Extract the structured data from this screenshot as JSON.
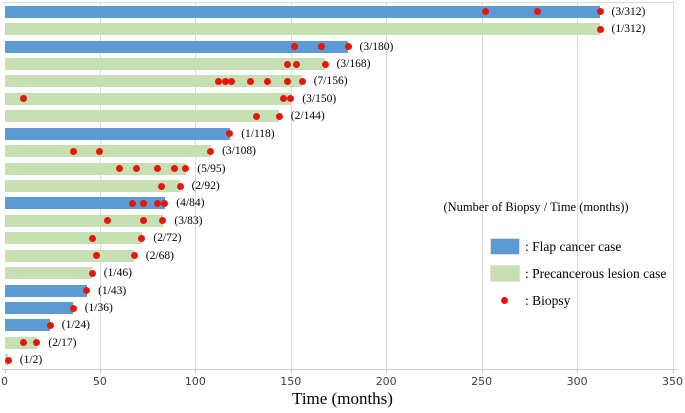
{
  "chart_data": {
    "type": "bar",
    "orientation": "horizontal",
    "title": "",
    "xlabel": "Time (months)",
    "ylabel": "",
    "xlim": [
      0,
      350
    ],
    "xticks": [
      0,
      50,
      100,
      150,
      200,
      250,
      300,
      350
    ],
    "grid": true,
    "label_format": "(Number of Biopsy / Time (months))",
    "bars": [
      {
        "label": "(3/312)",
        "case": "flap",
        "time_months": 312,
        "num_biopsy": 3,
        "biopsy_months": [
          252,
          279,
          312
        ]
      },
      {
        "label": "(1/312)",
        "case": "precancerous",
        "time_months": 312,
        "num_biopsy": 1,
        "biopsy_months": [
          312
        ]
      },
      {
        "label": "(3/180)",
        "case": "flap",
        "time_months": 180,
        "num_biopsy": 3,
        "biopsy_months": [
          152,
          166,
          180
        ]
      },
      {
        "label": "(3/168)",
        "case": "precancerous",
        "time_months": 168,
        "num_biopsy": 3,
        "biopsy_months": [
          148,
          153,
          168
        ]
      },
      {
        "label": "(7/156)",
        "case": "precancerous",
        "time_months": 156,
        "num_biopsy": 7,
        "biopsy_months": [
          112,
          116,
          119,
          129,
          138,
          148,
          156
        ]
      },
      {
        "label": "(3/150)",
        "case": "precancerous",
        "time_months": 150,
        "num_biopsy": 3,
        "biopsy_months": [
          10,
          146,
          150
        ]
      },
      {
        "label": "(2/144)",
        "case": "precancerous",
        "time_months": 144,
        "num_biopsy": 2,
        "biopsy_months": [
          132,
          144
        ]
      },
      {
        "label": "(1/118)",
        "case": "flap",
        "time_months": 118,
        "num_biopsy": 1,
        "biopsy_months": [
          118
        ]
      },
      {
        "label": "(3/108)",
        "case": "precancerous",
        "time_months": 108,
        "num_biopsy": 3,
        "biopsy_months": [
          36,
          50,
          108
        ]
      },
      {
        "label": "(5/95)",
        "case": "precancerous",
        "time_months": 95,
        "num_biopsy": 5,
        "biopsy_months": [
          60,
          69,
          80,
          89,
          95
        ]
      },
      {
        "label": "(2/92)",
        "case": "precancerous",
        "time_months": 92,
        "num_biopsy": 2,
        "biopsy_months": [
          82,
          92
        ]
      },
      {
        "label": "(4/84)",
        "case": "flap",
        "time_months": 84,
        "num_biopsy": 4,
        "biopsy_months": [
          67,
          73,
          80,
          84
        ]
      },
      {
        "label": "(3/83)",
        "case": "precancerous",
        "time_months": 83,
        "num_biopsy": 3,
        "biopsy_months": [
          54,
          73,
          83
        ]
      },
      {
        "label": "(2/72)",
        "case": "precancerous",
        "time_months": 72,
        "num_biopsy": 2,
        "biopsy_months": [
          46,
          72
        ]
      },
      {
        "label": "(2/68)",
        "case": "precancerous",
        "time_months": 68,
        "num_biopsy": 2,
        "biopsy_months": [
          48,
          68
        ]
      },
      {
        "label": "(1/46)",
        "case": "precancerous",
        "time_months": 46,
        "num_biopsy": 1,
        "biopsy_months": [
          46
        ]
      },
      {
        "label": "(1/43)",
        "case": "flap",
        "time_months": 43,
        "num_biopsy": 1,
        "biopsy_months": [
          43
        ]
      },
      {
        "label": "(1/36)",
        "case": "flap",
        "time_months": 36,
        "num_biopsy": 1,
        "biopsy_months": [
          36
        ]
      },
      {
        "label": "(1/24)",
        "case": "flap",
        "time_months": 24,
        "num_biopsy": 1,
        "biopsy_months": [
          24
        ]
      },
      {
        "label": "(2/17)",
        "case": "precancerous",
        "time_months": 17,
        "num_biopsy": 2,
        "biopsy_months": [
          10,
          17
        ]
      },
      {
        "label": "(1/2)",
        "case": "precancerous",
        "time_months": 2,
        "num_biopsy": 1,
        "biopsy_months": [
          2
        ]
      }
    ],
    "legend": {
      "header": "(Number of Biopsy / Time (months))",
      "items": [
        {
          "swatch": "flap",
          "label": ": Flap cancer case"
        },
        {
          "swatch": "precancerous",
          "label": ": Precancerous lesion case"
        },
        {
          "swatch": "biopsy",
          "label": ": Biopsy"
        }
      ],
      "position": "right-middle"
    },
    "colors": {
      "flap": "#5B9BD5",
      "precancerous": "#C6E0B4",
      "biopsy_dot": "#E8150A",
      "gridline": "#D9D9D9",
      "axis": "#BFBFBF",
      "tick_text": "#3F3F3F"
    }
  }
}
